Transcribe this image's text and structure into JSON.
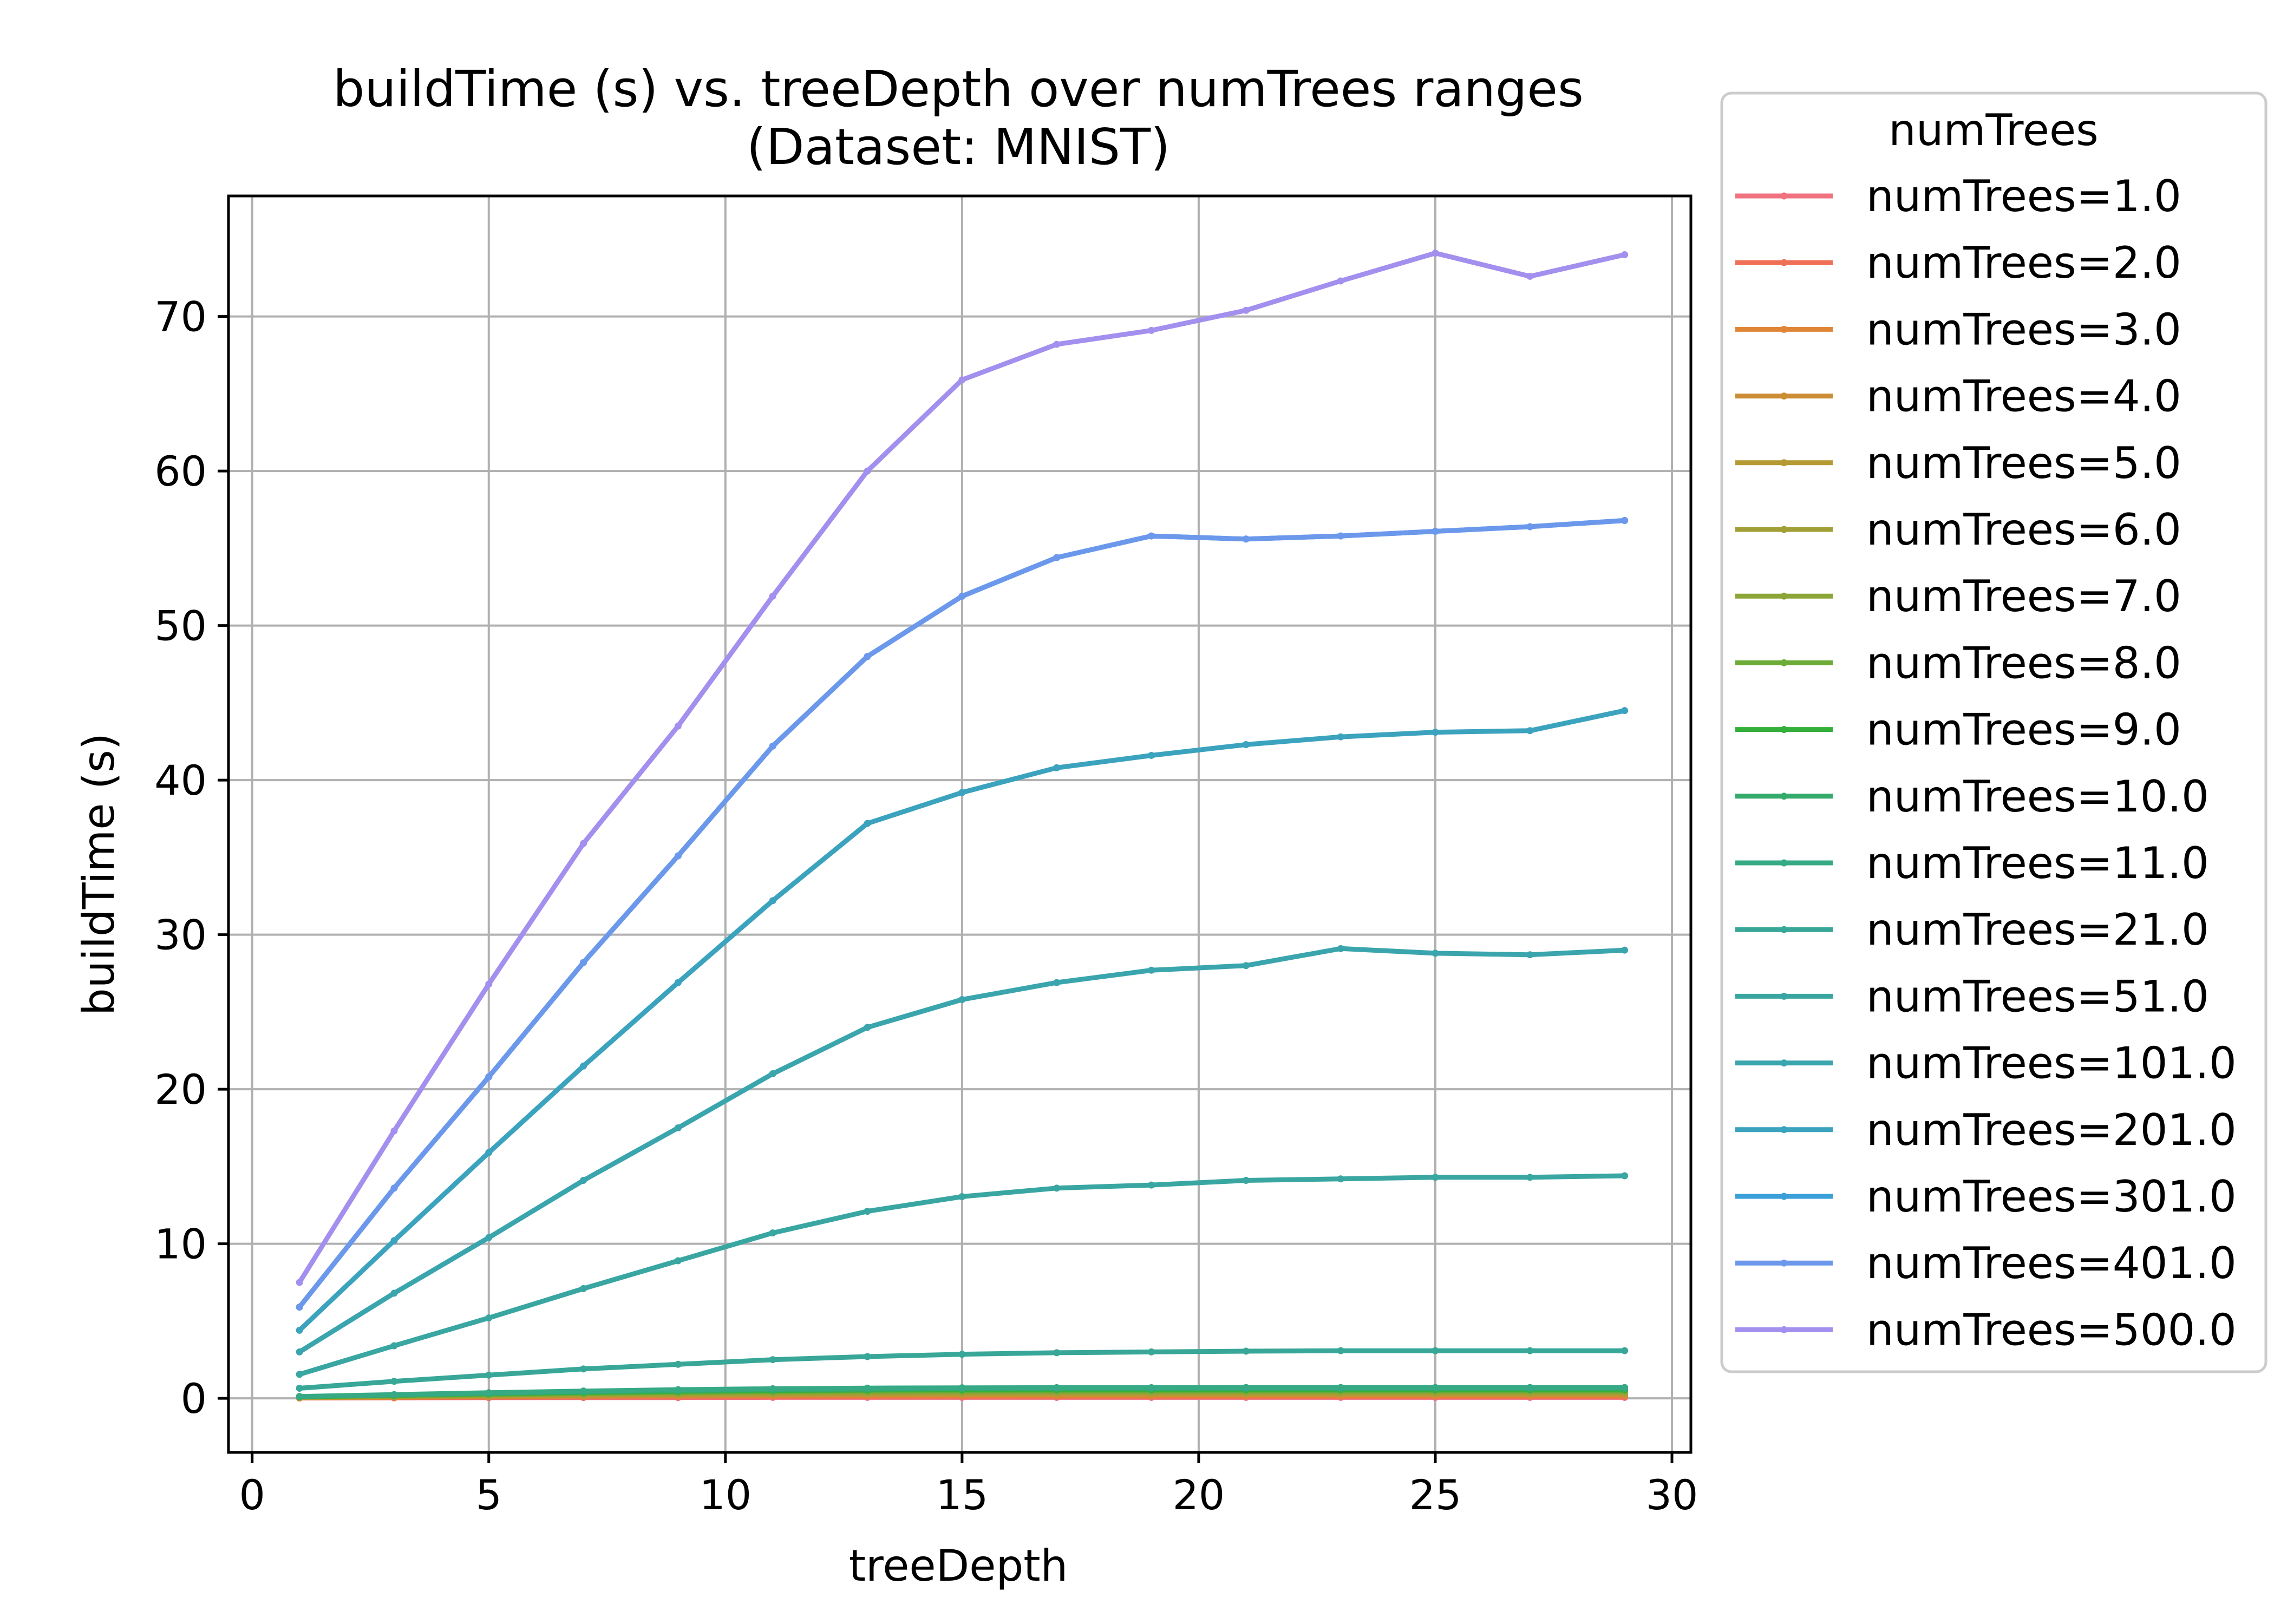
{
  "chart_data": {
    "type": "line",
    "title": "buildTime (s) vs. treeDepth over numTrees ranges",
    "subtitle": "(Dataset: MNIST)",
    "xlabel": "treeDepth",
    "ylabel": "buildTime (s)",
    "xlim": [
      -0.5,
      30.4
    ],
    "ylim": [
      -3.5,
      77.8
    ],
    "xticks": [
      0,
      5,
      10,
      15,
      20,
      25,
      30
    ],
    "yticks": [
      0,
      10,
      20,
      30,
      40,
      50,
      60,
      70
    ],
    "grid": true,
    "legend_title": "numTrees",
    "legend_position": "outside-right",
    "x": [
      1,
      3,
      5,
      7,
      9,
      11,
      13,
      15,
      17,
      19,
      21,
      23,
      25,
      27,
      29
    ],
    "series": [
      {
        "name": "numTrees=1.0",
        "color": "#f0717f",
        "values": [
          0.02,
          0.03,
          0.04,
          0.05,
          0.05,
          0.06,
          0.06,
          0.06,
          0.06,
          0.06,
          0.06,
          0.06,
          0.06,
          0.06,
          0.06
        ]
      },
      {
        "name": "numTrees=2.0",
        "color": "#f07057",
        "values": [
          0.03,
          0.05,
          0.07,
          0.09,
          0.1,
          0.11,
          0.12,
          0.12,
          0.12,
          0.12,
          0.12,
          0.12,
          0.12,
          0.12,
          0.12
        ]
      },
      {
        "name": "numTrees=3.0",
        "color": "#e08436",
        "values": [
          0.04,
          0.07,
          0.1,
          0.13,
          0.15,
          0.17,
          0.18,
          0.18,
          0.18,
          0.18,
          0.18,
          0.18,
          0.18,
          0.18,
          0.18
        ]
      },
      {
        "name": "numTrees=4.0",
        "color": "#cc8e34",
        "values": [
          0.05,
          0.09,
          0.13,
          0.17,
          0.2,
          0.22,
          0.24,
          0.24,
          0.25,
          0.25,
          0.25,
          0.25,
          0.25,
          0.25,
          0.25
        ]
      },
      {
        "name": "numTrees=5.0",
        "color": "#b59a34",
        "values": [
          0.06,
          0.11,
          0.16,
          0.21,
          0.25,
          0.28,
          0.3,
          0.31,
          0.31,
          0.31,
          0.31,
          0.31,
          0.31,
          0.31,
          0.31
        ]
      },
      {
        "name": "numTrees=6.0",
        "color": "#a19f35",
        "values": [
          0.07,
          0.13,
          0.2,
          0.26,
          0.3,
          0.34,
          0.36,
          0.37,
          0.37,
          0.37,
          0.38,
          0.38,
          0.38,
          0.38,
          0.38
        ]
      },
      {
        "name": "numTrees=7.0",
        "color": "#8ba536",
        "values": [
          0.08,
          0.16,
          0.23,
          0.3,
          0.35,
          0.39,
          0.42,
          0.43,
          0.44,
          0.44,
          0.44,
          0.44,
          0.44,
          0.44,
          0.44
        ]
      },
      {
        "name": "numTrees=8.0",
        "color": "#6bab36",
        "values": [
          0.09,
          0.18,
          0.26,
          0.34,
          0.4,
          0.45,
          0.48,
          0.5,
          0.5,
          0.5,
          0.5,
          0.51,
          0.51,
          0.51,
          0.51
        ]
      },
      {
        "name": "numTrees=9.0",
        "color": "#34af3a",
        "values": [
          0.1,
          0.2,
          0.3,
          0.38,
          0.45,
          0.5,
          0.54,
          0.56,
          0.57,
          0.57,
          0.57,
          0.57,
          0.57,
          0.57,
          0.57
        ]
      },
      {
        "name": "numTrees=10.0",
        "color": "#35ab6b",
        "values": [
          0.11,
          0.22,
          0.33,
          0.43,
          0.5,
          0.56,
          0.6,
          0.62,
          0.63,
          0.63,
          0.63,
          0.63,
          0.64,
          0.64,
          0.64
        ]
      },
      {
        "name": "numTrees=11.0",
        "color": "#36a985",
        "values": [
          0.12,
          0.24,
          0.36,
          0.47,
          0.56,
          0.62,
          0.66,
          0.68,
          0.69,
          0.69,
          0.7,
          0.7,
          0.7,
          0.7,
          0.7
        ]
      },
      {
        "name": "numTrees=21.0",
        "color": "#38a798",
        "values": [
          0.25,
          0.5,
          0.75,
          0.97,
          1.15,
          1.28,
          1.37,
          1.42,
          1.44,
          1.45,
          1.45,
          1.46,
          1.46,
          1.46,
          1.46
        ]
      },
      {
        "name": "numTrees=51.0",
        "color": "#39a6a2",
        "values": [
          0.6,
          1.2,
          1.8,
          2.4,
          2.9,
          3.2,
          3.4,
          3.55,
          3.6,
          3.62,
          3.63,
          3.64,
          3.64,
          3.64,
          3.64
        ]
      },
      {
        "name": "numTrees=101.0",
        "color": "#3aa5ad",
        "values": [
          1.5,
          3.0,
          4.5,
          5.9,
          7.1,
          8.0,
          8.6,
          9.0,
          9.1,
          9.2,
          9.2,
          9.3,
          9.3,
          9.3,
          9.3
        ]
      },
      {
        "name": "numTrees=201.0",
        "color": "#3ba3be",
        "values": [
          2.9,
          5.8,
          8.7,
          11.5,
          14.0,
          15.9,
          17.2,
          18.0,
          18.3,
          18.4,
          18.5,
          18.5,
          18.5,
          18.5,
          18.5
        ]
      },
      {
        "name": "numTrees=301.0",
        "color": "#3b9fd8",
        "values": [
          4.4,
          8.8,
          13.1,
          17.2,
          21.0,
          24.0,
          26.0,
          27.2,
          27.7,
          27.9,
          28.0,
          28.1,
          28.1,
          28.1,
          28.1
        ]
      },
      {
        "name": "numTrees=401.0",
        "color": "#6c98ec",
        "values": [
          5.9,
          11.8,
          17.5,
          23.0,
          28.0,
          32.0,
          34.8,
          36.5,
          37.2,
          37.5,
          37.6,
          37.7,
          37.7,
          37.7,
          37.7
        ]
      },
      {
        "name": "numTrees=500.0",
        "color": "#a38fee",
        "values": [
          7.4,
          14.7,
          21.9,
          28.8,
          35.0,
          40.0,
          43.5,
          45.6,
          46.5,
          46.9,
          47.0,
          47.1,
          47.2,
          47.2,
          47.2
        ]
      }
    ],
    "overrides": {
      "numTrees=21.0": [
        0.65,
        1.1,
        1.5,
        1.9,
        2.2,
        2.5,
        2.7,
        2.85,
        2.95,
        3.0,
        3.05,
        3.08,
        3.08,
        3.08,
        3.08
      ],
      "numTrees=51.0": [
        1.55,
        3.4,
        5.2,
        7.1,
        8.9,
        10.7,
        12.1,
        13.05,
        13.6,
        13.8,
        14.1,
        14.2,
        14.3,
        14.3,
        14.4
      ],
      "numTrees=101.0": [
        3.0,
        6.8,
        10.4,
        14.1,
        17.5,
        21.0,
        24.0,
        25.8,
        26.9,
        27.7,
        28.0,
        29.1,
        28.8,
        28.7,
        29.0
      ],
      "numTrees=201.0": [
        4.4,
        10.2,
        15.9,
        21.5,
        26.9,
        32.2,
        37.2,
        39.2,
        40.8,
        41.6,
        42.3,
        42.8,
        43.1,
        43.2,
        44.5
      ],
      "numTrees=301.0": [
        5.9,
        13.6,
        20.8,
        28.2,
        35.1,
        42.2,
        48.0,
        51.9,
        54.4,
        55.8,
        55.6,
        55.8,
        56.1,
        56.4,
        56.8
      ],
      "numTrees=401.0": [
        5.9,
        13.6,
        20.8,
        28.2,
        35.1,
        42.2,
        48.0,
        51.9,
        54.4,
        55.8,
        55.6,
        55.8,
        56.1,
        56.4,
        56.8
      ],
      "numTrees=500.0": [
        7.5,
        17.3,
        26.8,
        35.9,
        43.5,
        51.9,
        60.0,
        65.9,
        68.2,
        69.1,
        70.4,
        72.3,
        74.1,
        72.6,
        74.0
      ]
    }
  }
}
